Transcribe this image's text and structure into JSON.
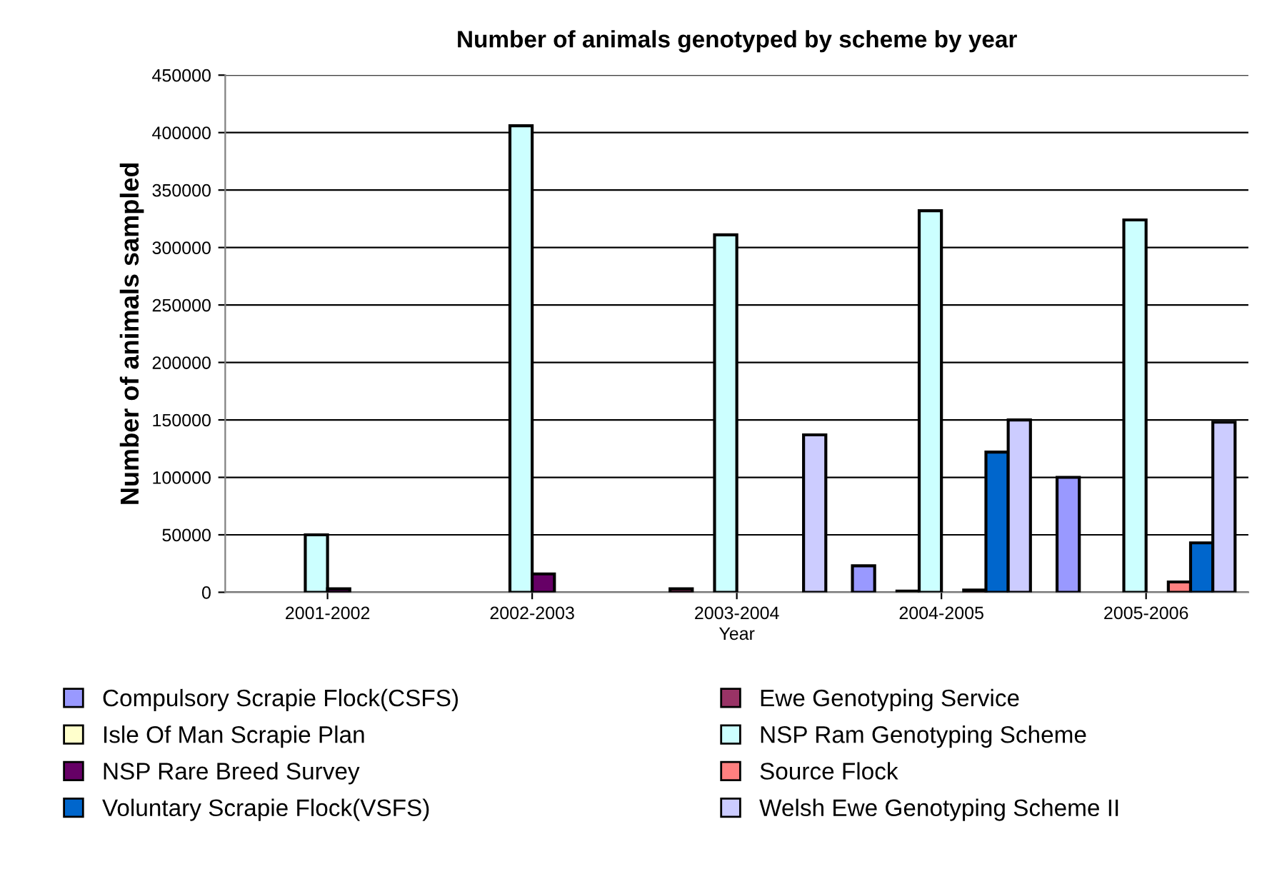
{
  "chart_data": {
    "type": "bar",
    "title": "Number of animals genotyped by scheme by year",
    "xlabel": "Year",
    "ylabel": "Number of animals sampled",
    "categories": [
      "2001-2002",
      "2002-2003",
      "2003-2004",
      "2004-2005",
      "2005-2006"
    ],
    "series": [
      {
        "name": "Compulsory Scrapie Flock(CSFS)",
        "color": "#9999ff",
        "values": [
          null,
          null,
          null,
          23000,
          100000
        ]
      },
      {
        "name": "Ewe Genotyping Service",
        "color": "#993366",
        "values": [
          null,
          null,
          3000,
          null,
          null
        ]
      },
      {
        "name": "Isle Of Man Scrapie Plan",
        "color": "#ffffcc",
        "values": [
          null,
          null,
          null,
          1000,
          null
        ]
      },
      {
        "name": "NSP Ram Genotyping Scheme",
        "color": "#ccffff",
        "values": [
          50000,
          406000,
          311000,
          332000,
          324000
        ]
      },
      {
        "name": "NSP Rare Breed Survey",
        "color": "#660066",
        "values": [
          3000,
          16000,
          null,
          null,
          null
        ]
      },
      {
        "name": "Source Flock",
        "color": "#ff8080",
        "values": [
          null,
          null,
          null,
          2000,
          9000
        ]
      },
      {
        "name": "Voluntary Scrapie Flock(VSFS)",
        "color": "#0066cc",
        "values": [
          null,
          null,
          null,
          122000,
          43000
        ]
      },
      {
        "name": "Welsh Ewe Genotyping Scheme II",
        "color": "#ccccff",
        "values": [
          null,
          null,
          137000,
          150000,
          148000
        ]
      }
    ],
    "ylim": [
      0,
      450000
    ],
    "yticks": [
      0,
      50000,
      100000,
      150000,
      200000,
      250000,
      300000,
      350000,
      400000,
      450000
    ],
    "grid": "y",
    "legend": "bottom"
  }
}
